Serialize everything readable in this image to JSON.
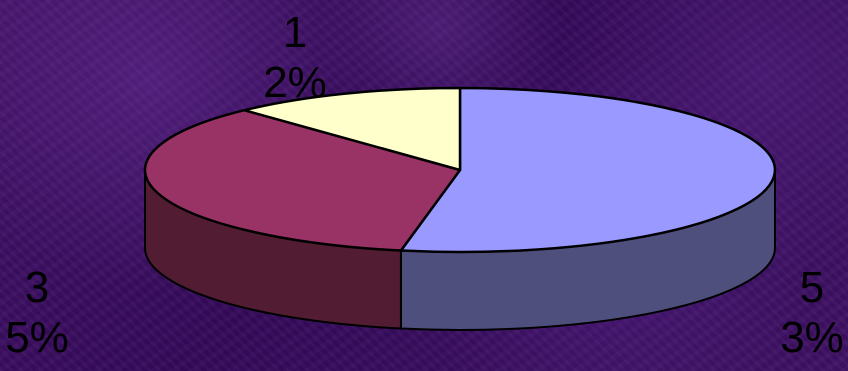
{
  "chart_data": {
    "type": "pie",
    "style": "3d",
    "slices": [
      {
        "label": "53%",
        "value": 53,
        "color": "#9999ff",
        "side_color": "#4f4f7e"
      },
      {
        "label": "35%",
        "value": 35,
        "color": "#993366",
        "side_color": "#521c33"
      },
      {
        "label": "12%",
        "value": 12,
        "color": "#ffffcc",
        "side_color": "#8a8a6e"
      }
    ],
    "title": "",
    "legend": "none"
  }
}
